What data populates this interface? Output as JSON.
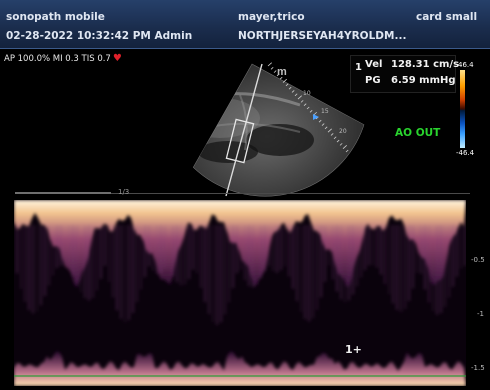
{
  "header": {
    "institution": "sonopath mobile",
    "datetime_operator": "02-28-2022 10:32:42 PM  Admin",
    "patient_name": "mayer,trico",
    "patient_id": "NORTHJERSEYAH4YROLDM...",
    "preset": "card small"
  },
  "params": {
    "text": "AP 100.0%  MI 0.3  TIS 0.7"
  },
  "sector": {
    "depth_labels": [
      "m",
      "10",
      "15",
      "20"
    ]
  },
  "measurement": {
    "index": "1",
    "vel_label": "Vel",
    "vel_value": "128.31 cm/s",
    "pg_label": "PG",
    "pg_value": "6.59 mmHg"
  },
  "color_scale": {
    "top": "46.4",
    "bottom": "-46.4"
  },
  "annotation": "AO OUT",
  "timebar": {
    "label": "1/3",
    "progress": 0.21
  },
  "doppler_axis": {
    "labels": [
      "-0.5",
      "-1",
      "-1.5"
    ],
    "cursor": "1+"
  },
  "colors": {
    "header": "#1a2c4c",
    "annotation": "#29d42e",
    "heart": "#e0202a",
    "baseline": "#2f9a3a"
  },
  "icons": [
    "heart-icon",
    "focus-marker-icon",
    "caliper-cursor-icon"
  ]
}
